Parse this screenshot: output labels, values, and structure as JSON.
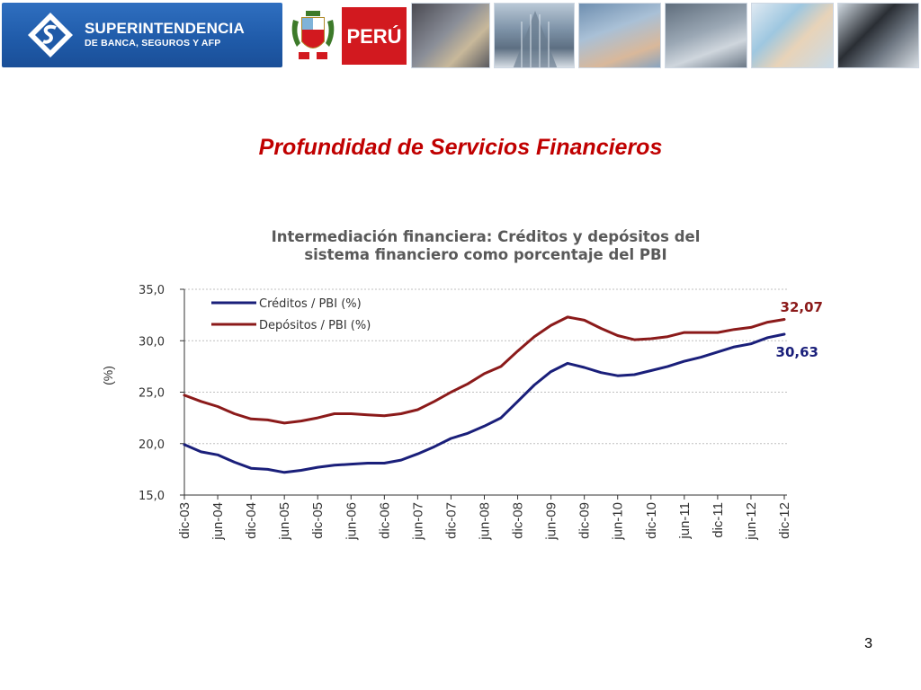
{
  "header": {
    "org_name_line1": "SUPERINTENDENCIA",
    "org_name_line2": "DE BANCA, SEGUROS Y AFP",
    "country_label": "PERÚ",
    "colors": {
      "brand_blue": "#1f5aa8",
      "peru_red": "#d2191f"
    },
    "photo_strip": [
      "cards-photo",
      "building-photo",
      "keyboard-photo",
      "atm-photo",
      "documents-photo",
      "pos-terminal-photo"
    ]
  },
  "slide": {
    "title": "Profundidad de Servicios Financieros",
    "page_number": "3"
  },
  "chart_data": {
    "type": "line",
    "title_line1": "Intermediación financiera: Créditos y depósitos del",
    "title_line2": "sistema financiero como porcentaje del PBI",
    "ylabel": "(%)",
    "ylim": [
      15,
      35
    ],
    "yticks": [
      "15,0",
      "20,0",
      "25,0",
      "30,0",
      "35,0"
    ],
    "ytick_values": [
      15,
      20,
      25,
      30,
      35
    ],
    "xticks": [
      "dic-03",
      "jun-04",
      "dic-04",
      "jun-05",
      "dic-05",
      "jun-06",
      "dic-06",
      "jun-07",
      "dic-07",
      "jun-08",
      "dic-08",
      "jun-09",
      "dic-09",
      "jun-10",
      "dic-10",
      "jun-11",
      "dic-11",
      "jun-12",
      "dic-12"
    ],
    "n_points": 37,
    "grid": "horizontal dashed",
    "legend": "top-left",
    "series": [
      {
        "name": "Créditos / PBI (%)",
        "color": "#1a1f7a",
        "values": [
          19.9,
          19.2,
          18.9,
          18.2,
          17.6,
          17.5,
          17.2,
          17.4,
          17.7,
          17.9,
          18.0,
          18.1,
          18.1,
          18.4,
          19.0,
          19.7,
          20.5,
          21.0,
          21.7,
          22.5,
          24.1,
          25.7,
          27.0,
          27.8,
          27.4,
          26.9,
          26.6,
          26.7,
          27.1,
          27.5,
          28.0,
          28.4,
          28.9,
          29.4,
          29.7,
          30.3,
          30.63
        ],
        "end_label": "30,63"
      },
      {
        "name": "Depósitos / PBI (%)",
        "color": "#8b1a1a",
        "values": [
          24.7,
          24.1,
          23.6,
          22.9,
          22.4,
          22.3,
          22.0,
          22.2,
          22.5,
          22.9,
          22.9,
          22.8,
          22.7,
          22.9,
          23.3,
          24.1,
          25.0,
          25.8,
          26.8,
          27.5,
          29.0,
          30.4,
          31.5,
          32.3,
          32.0,
          31.2,
          30.5,
          30.1,
          30.2,
          30.4,
          30.8,
          30.8,
          30.8,
          31.1,
          31.3,
          31.8,
          32.07
        ],
        "end_label": "32,07"
      }
    ]
  }
}
